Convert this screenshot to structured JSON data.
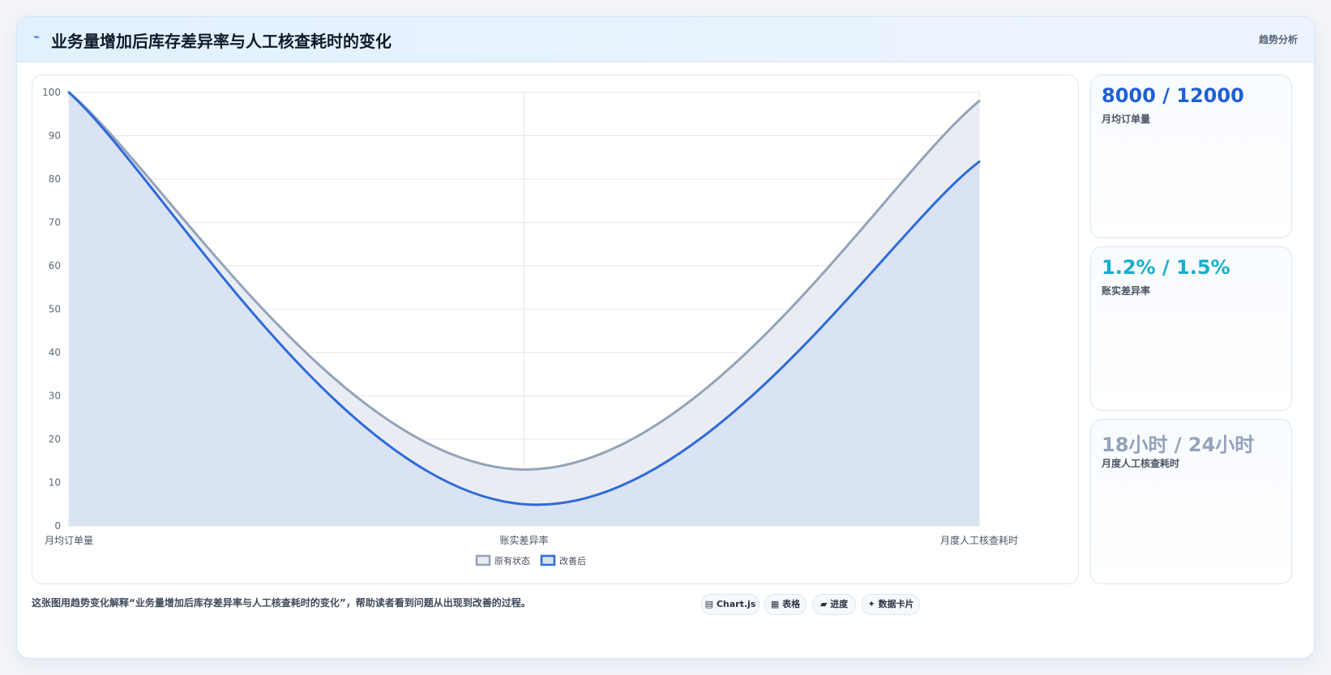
{
  "header": {
    "icon": "lightning-icon",
    "title": "业务量增加后库存差异率与人工核查耗时的变化",
    "tag": "趋势分析"
  },
  "chart_data": {
    "type": "area",
    "categories": [
      "月均订单量",
      "账实差异率",
      "月度人工核查耗时"
    ],
    "ylim": [
      0,
      100
    ],
    "yticks": [
      0,
      10,
      20,
      30,
      40,
      50,
      60,
      70,
      80,
      90,
      100
    ],
    "grid": true,
    "legend_position": "bottom",
    "series": [
      {
        "name": "原有状态",
        "values": [
          100,
          13,
          98
        ],
        "color": "#94a3b8",
        "fill": "#e9edf3"
      },
      {
        "name": "改善后",
        "values": [
          100,
          5,
          84
        ],
        "color": "#2f6bd9",
        "fill": "#d9e3f3"
      }
    ]
  },
  "stats": [
    {
      "value": "8000 / 12000",
      "label": "月均订单量",
      "color": "#1e5fd6"
    },
    {
      "value": "1.2% / 1.5%",
      "label": "账实差异率",
      "color": "#15aec9"
    },
    {
      "value": "18小时 / 24小时",
      "label": "月度人工核查耗时",
      "color": "#93a3bb"
    }
  ],
  "footer": {
    "description": "这张图用趋势变化解释“业务量增加后库存差异率与人工核查耗时的变化”，帮助读者看到问题从出现到改善的过程。",
    "pills": [
      {
        "icon": "chart-icon",
        "label": "Chart.js"
      },
      {
        "icon": "table-icon",
        "label": "表格"
      },
      {
        "icon": "progress-icon",
        "label": "进度"
      },
      {
        "icon": "sparkle-icon",
        "label": "数据卡片"
      }
    ]
  }
}
